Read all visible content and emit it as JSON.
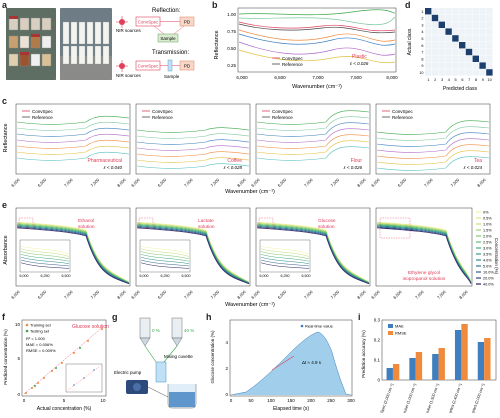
{
  "figure": {
    "panel_letters": [
      "a",
      "b",
      "c",
      "d",
      "e",
      "f",
      "g",
      "h",
      "i"
    ],
    "colors": {
      "convspec": "#e0405a",
      "reference": "#444444",
      "glucose": "#e0405a",
      "blue_bar": "#3f7fbf",
      "orange_bar": "#f08a3c",
      "area_fill": "#8fc6e8",
      "green": "#3aa84a",
      "matrix_dark": "#1c3f6e"
    }
  },
  "panel_a": {
    "reflection_label": "Reflection:",
    "transmission_label": "Transmission:",
    "nir_label": "NIR sources",
    "convspec_box": "ConvSpec",
    "pd_box": "PD",
    "sample_box": "Sample",
    "sample_label": "Sample"
  },
  "panel_b": {
    "ylabel": "Reflectance",
    "xlabel": "Wavenumber (cm⁻¹)",
    "xticks": [
      "6,000",
      "6,500",
      "7,000",
      "7,500",
      "8,000"
    ],
    "yticks": [
      "0.25",
      "0.50",
      "0.75",
      "1.00"
    ],
    "legend": [
      "ConvSpec",
      "Reference"
    ],
    "material": "Plastic",
    "err": "ε < 0.026"
  },
  "panel_c": {
    "ylabel": "Reflectance",
    "xlabel": "Wavenumber (cm⁻¹)",
    "xticks": [
      "6,000",
      "6,500",
      "7,000",
      "7,500",
      "8,000"
    ],
    "legend": [
      "ConvSpec",
      "Reference"
    ],
    "sub": [
      {
        "material": "Pharmaceutical",
        "err": "ε < 0.040"
      },
      {
        "material": "Coffee",
        "err": "ε < 0.028"
      },
      {
        "material": "Flour",
        "err": "ε < 0.026"
      },
      {
        "material": "Tea",
        "err": "ε < 0.024"
      }
    ]
  },
  "panel_d": {
    "ylabel": "Actual class",
    "xlabel": "Predicted class",
    "ticks": [
      "1",
      "2",
      "3",
      "4",
      "5",
      "6",
      "7",
      "8",
      "9",
      "10"
    ]
  },
  "panel_e": {
    "ylabel": "Absorbance",
    "xlabel": "Wavenumber (cm⁻¹)",
    "xticks": [
      "6,000",
      "6,500",
      "7,000",
      "7,500",
      "8,000"
    ],
    "inset_xticks": [
      "6,000",
      "6,250",
      "6,500"
    ],
    "sub": [
      {
        "name": "Ethanol\nsolution"
      },
      {
        "name": "Lactate\nsolution"
      },
      {
        "name": "Glucose\nsolution"
      },
      {
        "name": "Ethylene glycol\nisopropanol solution"
      }
    ],
    "conc_title": "Concentration (%)",
    "conc_levels": [
      "0%",
      "0.5%",
      "1.0%",
      "1.5%",
      "2.0%",
      "2.5%",
      "3.0%",
      "3.5%",
      "4.0%",
      "5.0%",
      "10.0%",
      "20.0%",
      "40.0%"
    ]
  },
  "panel_f": {
    "ylabel": "Predicted concentration (%)",
    "xlabel": "Actual concentration (%)",
    "legend": [
      "Training set",
      "Testing set"
    ],
    "title": "Glucose solution",
    "stats": [
      "R² = 1.000",
      "MAE = 0.006%",
      "RMSE = 0.009%"
    ],
    "xticks": [
      "0",
      "5",
      "10"
    ],
    "yticks": [
      "0",
      "5",
      "10"
    ]
  },
  "panel_g": {
    "labels": [
      "Electric pump",
      "Mixing cuvette"
    ],
    "pct_left": "0 %",
    "pct_right": "40 %"
  },
  "panel_h": {
    "ylabel": "Glucose concentration (%)",
    "xlabel": "Elapsed time (s)",
    "legend": "Real-time value",
    "annotation": "Δt ≈ 4.9 s",
    "xticks": [
      "0",
      "50",
      "100",
      "150",
      "200",
      "250",
      "300"
    ],
    "yticks": [
      "0",
      "2",
      "4"
    ]
  },
  "panel_i": {
    "ylabel": "Prediction accuracy (%)",
    "legend": [
      "MAE",
      "RMSE"
    ],
    "yticks": [
      "0",
      "0.1",
      "0.2",
      "0.3"
    ],
    "categories": [
      "ConvSpec (2,000 cm⁻¹)",
      "Bruker (1,000 cm⁻¹)",
      "Bruker (1,500 cm⁻¹)",
      "Ideal optics (2,400 cm⁻¹)",
      "Ideal optics (2,000 cm⁻¹)"
    ]
  },
  "chart_data": [
    {
      "type": "bar",
      "title": "",
      "categories": [
        "ConvSpec",
        "Bruker 1000",
        "Bruker 1500",
        "Ideal 2400",
        "Ideal 2000"
      ],
      "series": [
        {
          "name": "MAE",
          "values": [
            0.06,
            0.11,
            0.13,
            0.25,
            0.19
          ]
        },
        {
          "name": "RMSE",
          "values": [
            0.08,
            0.14,
            0.16,
            0.28,
            0.21
          ]
        }
      ],
      "ylim": [
        0,
        0.3
      ]
    }
  ]
}
